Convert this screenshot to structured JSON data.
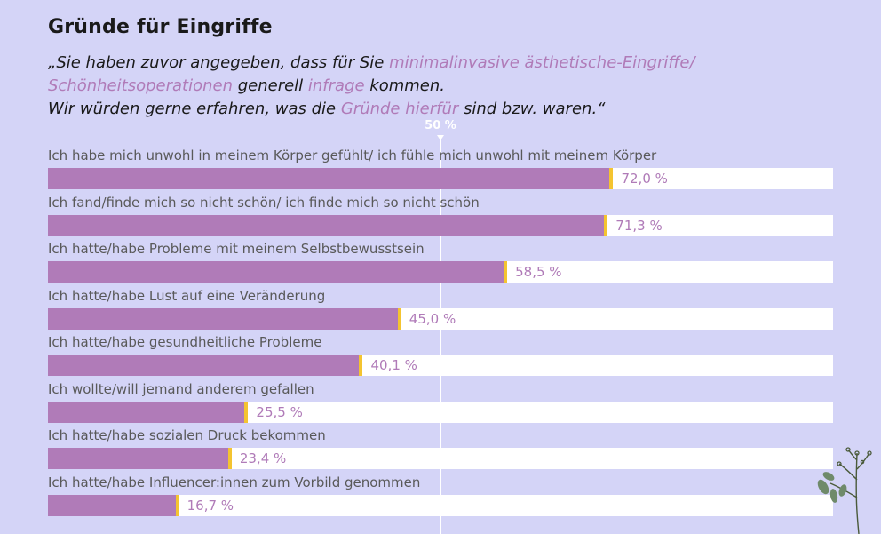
{
  "header": {
    "title": "Gründe für Eingriffe",
    "quote": {
      "l1_a": "„Sie haben zuvor angegeben, dass für Sie ",
      "l1_b": "minimalinvasive ästhetische-Eingriffe/",
      "l2_a": "Schönheitsoperationen",
      "l2_b": " generell ",
      "l2_c": "infrage",
      "l2_d": " kommen.",
      "l3_a": "Wir würden gerne erfahren, was die ",
      "l3_b": "Gründe hierfür",
      "l3_c": " sind bzw. waren.“"
    }
  },
  "chart_data": {
    "type": "bar",
    "orientation": "horizontal",
    "reference_line": {
      "value": 50,
      "label": "50 %"
    },
    "xlim": [
      0,
      100
    ],
    "colors": {
      "bar": "#b07bb8",
      "bar_end": "#f4c430",
      "track": "#ffffff",
      "background": "#d4d4f7"
    },
    "categories": [
      "Ich habe mich unwohl in meinem Körper gefühlt/ ich fühle mich unwohl mit meinem Körper",
      "Ich fand/finde mich so nicht schön/ ich finde mich so nicht schön",
      "Ich hatte/habe Probleme mit meinem Selbstbewusstsein",
      "Ich hatte/habe Lust auf eine Veränderung",
      "Ich hatte/habe gesundheitliche Probleme",
      "Ich wollte/will jemand anderem gefallen",
      "Ich hatte/habe sozialen Druck bekommen",
      "Ich hatte/habe Influencer:innen zum Vorbild genommen"
    ],
    "values": [
      72.0,
      71.3,
      58.5,
      45.0,
      40.1,
      25.5,
      23.4,
      16.7
    ],
    "value_labels": [
      "72,0 %",
      "71,3 %",
      "58,5 %",
      "45,0 %",
      "40,1 %",
      "25,5 %",
      "23,4 %",
      "16,7 %"
    ]
  },
  "decoration": {
    "plant_icon": "plant-sprig-icon"
  }
}
